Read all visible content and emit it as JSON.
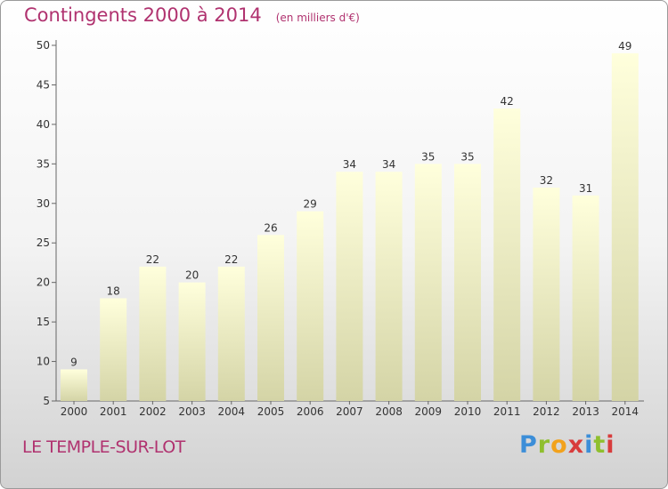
{
  "header": {
    "title": "Contingents 2000 à 2014",
    "subtitle": "(en milliers d'€)"
  },
  "footer": {
    "commune": "LE TEMPLE-SUR-LOT",
    "brand": "Proxiti"
  },
  "colors": {
    "title": "#b0326f",
    "bar_top": "#ffffdc",
    "bar_bottom": "#d4d4a6"
  },
  "chart_data": {
    "type": "bar",
    "title": "Contingents 2000 à 2014",
    "subtitle": "(en milliers d'€)",
    "xlabel": "",
    "ylabel": "",
    "categories": [
      "2000",
      "2001",
      "2002",
      "2003",
      "2004",
      "2005",
      "2006",
      "2007",
      "2008",
      "2009",
      "2010",
      "2011",
      "2012",
      "2013",
      "2014"
    ],
    "values": [
      9,
      18,
      22,
      20,
      22,
      26,
      29,
      34,
      34,
      35,
      35,
      42,
      32,
      31,
      49
    ],
    "ylim": [
      5,
      50
    ],
    "yticks": [
      5,
      10,
      15,
      20,
      25,
      30,
      35,
      40,
      45,
      50
    ],
    "grid": false,
    "legend": "none"
  }
}
